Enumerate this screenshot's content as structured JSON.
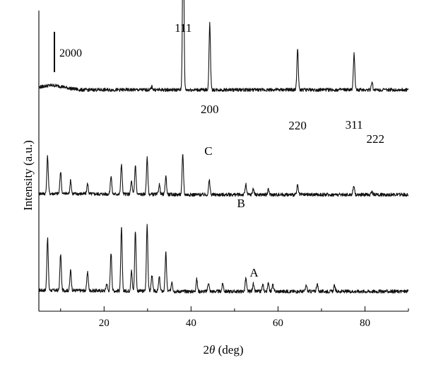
{
  "chart_data": {
    "type": "line",
    "xlabel_prefix": "2",
    "xlabel_theta": "θ",
    "xlabel_suffix": " (deg)",
    "ylabel": "Intensity (a.u.)",
    "xlim": [
      5,
      90
    ],
    "x_ticks": [
      20,
      40,
      60,
      80
    ],
    "grid": false,
    "scale_bar": "2000",
    "series": [
      {
        "name": "A",
        "baseline": 0,
        "peaks": [
          [
            7,
            2600
          ],
          [
            10,
            1800
          ],
          [
            12.3,
            1000
          ],
          [
            16.2,
            950
          ],
          [
            20.6,
            350
          ],
          [
            21.6,
            1900
          ],
          [
            24,
            3100
          ],
          [
            26.3,
            1000
          ],
          [
            27.2,
            3000
          ],
          [
            29.9,
            3300
          ],
          [
            31,
            800
          ],
          [
            32.7,
            700
          ],
          [
            34.2,
            1900
          ],
          [
            35.6,
            500
          ],
          [
            41.3,
            600
          ],
          [
            44,
            450
          ],
          [
            47.3,
            400
          ],
          [
            52.6,
            650
          ],
          [
            54.3,
            380
          ],
          [
            56.5,
            330
          ],
          [
            57.8,
            430
          ],
          [
            58.8,
            330
          ],
          [
            66.5,
            300
          ],
          [
            69,
            380
          ],
          [
            73,
            300
          ]
        ]
      },
      {
        "name": "B",
        "baseline": 4800,
        "peaks": [
          [
            7,
            1850
          ],
          [
            10,
            1100
          ],
          [
            12.3,
            650
          ],
          [
            16.2,
            500
          ],
          [
            21.6,
            900
          ],
          [
            24,
            1500
          ],
          [
            26.3,
            650
          ],
          [
            27.2,
            1450
          ],
          [
            29.9,
            1800
          ],
          [
            32.7,
            500
          ],
          [
            34.2,
            900
          ],
          [
            38.1,
            2000
          ],
          [
            44.2,
            700
          ],
          [
            52.6,
            500
          ],
          [
            54.3,
            300
          ],
          [
            57.8,
            250
          ],
          [
            64.5,
            450
          ],
          [
            77.4,
            450
          ],
          [
            81.6,
            150
          ]
        ]
      },
      {
        "name": "C",
        "baseline": 10000,
        "peaks": [
          [
            38.2,
            8700
          ],
          [
            44.3,
            3300
          ],
          [
            64.5,
            2000
          ],
          [
            77.5,
            1800
          ],
          [
            81.6,
            400
          ],
          [
            31,
            150
          ]
        ]
      }
    ],
    "peak_labels": [
      {
        "text": "111",
        "x": 38.2
      },
      {
        "text": "200",
        "x": 44.3
      },
      {
        "text": "220",
        "x": 64.5
      },
      {
        "text": "311",
        "x": 77.5
      },
      {
        "text": "222",
        "x": 82.4
      }
    ]
  }
}
